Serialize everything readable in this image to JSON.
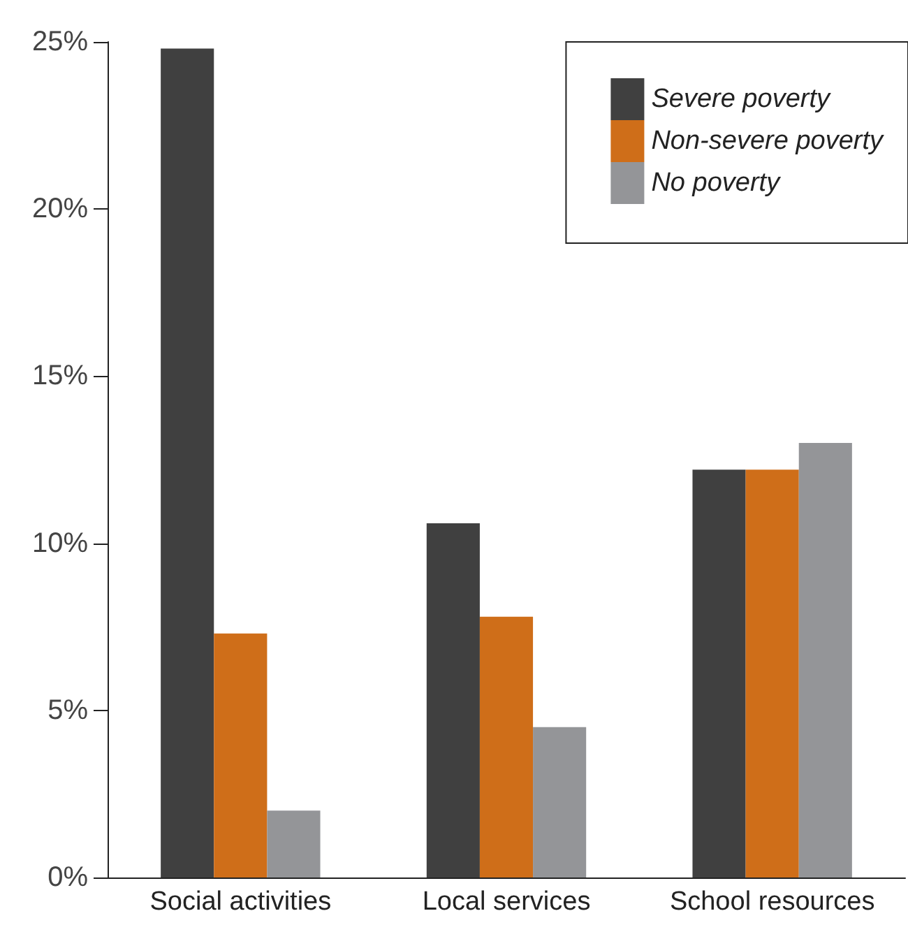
{
  "chart_data": {
    "type": "bar",
    "categories": [
      "Social activities",
      "Local services",
      "School resources"
    ],
    "series": [
      {
        "name": "Severe poverty",
        "color": "#404040",
        "values": [
          24.8,
          10.6,
          12.2
        ]
      },
      {
        "name": "Non-severe poverty",
        "color": "#cf6e19",
        "values": [
          7.3,
          7.8,
          12.2
        ]
      },
      {
        "name": "No poverty",
        "color": "#949598",
        "values": [
          2.0,
          4.5,
          13.0
        ]
      }
    ],
    "ylim": [
      0,
      25
    ],
    "yticks": [
      {
        "value": 0,
        "label": "0%"
      },
      {
        "value": 5,
        "label": "5%"
      },
      {
        "value": 10,
        "label": "10%"
      },
      {
        "value": 15,
        "label": "15%"
      },
      {
        "value": 20,
        "label": "20%"
      },
      {
        "value": 25,
        "label": "25%"
      }
    ],
    "grid": false,
    "legend": "top right"
  }
}
